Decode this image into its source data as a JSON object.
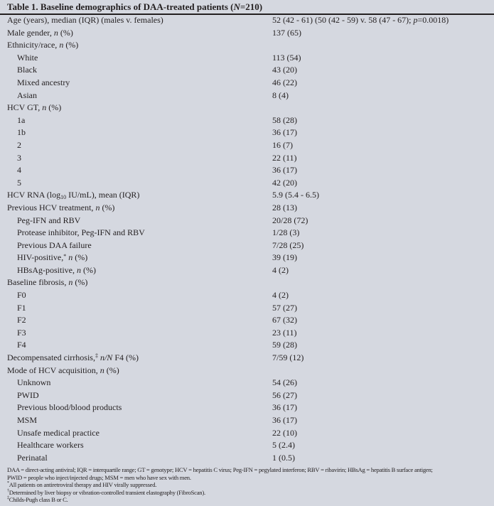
{
  "title": {
    "prefix": "Table 1. Baseline demographics of DAA-treated patients (",
    "italic": "N",
    "suffix": "=210)"
  },
  "rows": [
    {
      "indent": 0,
      "label": [
        [
          "t",
          "Age (years), median (IQR) (males v. females)"
        ]
      ],
      "value": [
        [
          "t",
          "52 (42 - 61) (50 (42 - 59) v. 58 (47 - 67); "
        ],
        [
          "i",
          "p"
        ],
        [
          "t",
          "=0.0018)"
        ]
      ]
    },
    {
      "indent": 0,
      "label": [
        [
          "t",
          "Male gender, "
        ],
        [
          "i",
          "n"
        ],
        [
          "t",
          " (%)"
        ]
      ],
      "value": [
        [
          "t",
          "137 (65)"
        ]
      ]
    },
    {
      "indent": 0,
      "label": [
        [
          "t",
          "Ethnicity/race, "
        ],
        [
          "i",
          "n"
        ],
        [
          "t",
          " (%)"
        ]
      ],
      "value": []
    },
    {
      "indent": 1,
      "label": [
        [
          "t",
          "White"
        ]
      ],
      "value": [
        [
          "t",
          "113 (54)"
        ]
      ]
    },
    {
      "indent": 1,
      "label": [
        [
          "t",
          "Black"
        ]
      ],
      "value": [
        [
          "t",
          "43 (20)"
        ]
      ]
    },
    {
      "indent": 1,
      "label": [
        [
          "t",
          "Mixed ancestry"
        ]
      ],
      "value": [
        [
          "t",
          "46 (22)"
        ]
      ]
    },
    {
      "indent": 1,
      "label": [
        [
          "t",
          "Asian"
        ]
      ],
      "value": [
        [
          "t",
          "8 (4)"
        ]
      ]
    },
    {
      "indent": 0,
      "label": [
        [
          "t",
          "HCV GT, "
        ],
        [
          "i",
          "n"
        ],
        [
          "t",
          " (%)"
        ]
      ],
      "value": []
    },
    {
      "indent": 1,
      "label": [
        [
          "t",
          "1a"
        ]
      ],
      "value": [
        [
          "t",
          "58 (28)"
        ]
      ]
    },
    {
      "indent": 1,
      "label": [
        [
          "t",
          "1b"
        ]
      ],
      "value": [
        [
          "t",
          "36 (17)"
        ]
      ]
    },
    {
      "indent": 1,
      "label": [
        [
          "t",
          "2"
        ]
      ],
      "value": [
        [
          "t",
          "16 (7)"
        ]
      ]
    },
    {
      "indent": 1,
      "label": [
        [
          "t",
          "3"
        ]
      ],
      "value": [
        [
          "t",
          "22 (11)"
        ]
      ]
    },
    {
      "indent": 1,
      "label": [
        [
          "t",
          "4"
        ]
      ],
      "value": [
        [
          "t",
          "36 (17)"
        ]
      ]
    },
    {
      "indent": 1,
      "label": [
        [
          "t",
          "5"
        ]
      ],
      "value": [
        [
          "t",
          "42 (20)"
        ]
      ]
    },
    {
      "indent": 0,
      "label": [
        [
          "t",
          "HCV RNA (log"
        ],
        [
          "sub",
          "10"
        ],
        [
          "t",
          " IU/mL), mean (IQR)"
        ]
      ],
      "value": [
        [
          "t",
          "5.9 (5.4 - 6.5)"
        ]
      ]
    },
    {
      "indent": 0,
      "label": [
        [
          "t",
          "Previous HCV treatment, "
        ],
        [
          "i",
          "n"
        ],
        [
          "t",
          " (%)"
        ]
      ],
      "value": [
        [
          "t",
          "28 (13)"
        ]
      ]
    },
    {
      "indent": 1,
      "label": [
        [
          "t",
          "Peg-IFN and RBV"
        ]
      ],
      "value": [
        [
          "t",
          "20/28 (72)"
        ]
      ]
    },
    {
      "indent": 1,
      "label": [
        [
          "t",
          "Protease inhibitor, Peg-IFN and RBV"
        ]
      ],
      "value": [
        [
          "t",
          "1/28 (3)"
        ]
      ]
    },
    {
      "indent": 1,
      "label": [
        [
          "t",
          "Previous DAA failure"
        ]
      ],
      "value": [
        [
          "t",
          "7/28 (25)"
        ]
      ]
    },
    {
      "indent": 1,
      "label": [
        [
          "t",
          "HIV-positive,"
        ],
        [
          "sup",
          "*"
        ],
        [
          "t",
          " "
        ],
        [
          "i",
          "n"
        ],
        [
          "t",
          " (%)"
        ]
      ],
      "value": [
        [
          "t",
          "39 (19)"
        ]
      ]
    },
    {
      "indent": 1,
      "label": [
        [
          "t",
          "HBsAg-positive, "
        ],
        [
          "i",
          "n"
        ],
        [
          "t",
          " (%)"
        ]
      ],
      "value": [
        [
          "t",
          "4 (2)"
        ]
      ]
    },
    {
      "indent": 0,
      "label": [
        [
          "t",
          "Baseline fibrosis, "
        ],
        [
          "i",
          "n"
        ],
        [
          "t",
          " (%)"
        ]
      ],
      "value": []
    },
    {
      "indent": 1,
      "label": [
        [
          "t",
          "F0"
        ]
      ],
      "value": [
        [
          "t",
          "4 (2)"
        ]
      ]
    },
    {
      "indent": 1,
      "label": [
        [
          "t",
          "F1"
        ]
      ],
      "value": [
        [
          "t",
          "57 (27)"
        ]
      ]
    },
    {
      "indent": 1,
      "label": [
        [
          "t",
          "F2"
        ]
      ],
      "value": [
        [
          "t",
          "67 (32)"
        ]
      ]
    },
    {
      "indent": 1,
      "label": [
        [
          "t",
          "F3"
        ]
      ],
      "value": [
        [
          "t",
          "23 (11)"
        ]
      ]
    },
    {
      "indent": 1,
      "label": [
        [
          "t",
          "F4"
        ]
      ],
      "value": [
        [
          "t",
          "59 (28)"
        ]
      ]
    },
    {
      "indent": 0,
      "label": [
        [
          "t",
          "Decompensated cirrhosis,"
        ],
        [
          "sup",
          "‡"
        ],
        [
          "t",
          " "
        ],
        [
          "i",
          "n/N"
        ],
        [
          "t",
          " F4 (%)"
        ]
      ],
      "value": [
        [
          "t",
          "7/59 (12)"
        ]
      ]
    },
    {
      "indent": 0,
      "label": [
        [
          "t",
          "Mode of HCV acquisition, "
        ],
        [
          "i",
          "n"
        ],
        [
          "t",
          " (%)"
        ]
      ],
      "value": []
    },
    {
      "indent": 1,
      "label": [
        [
          "t",
          "Unknown"
        ]
      ],
      "value": [
        [
          "t",
          "54 (26)"
        ]
      ]
    },
    {
      "indent": 1,
      "label": [
        [
          "t",
          "PWID"
        ]
      ],
      "value": [
        [
          "t",
          "56 (27)"
        ]
      ]
    },
    {
      "indent": 1,
      "label": [
        [
          "t",
          "Previous blood/blood products"
        ]
      ],
      "value": [
        [
          "t",
          "36 (17)"
        ]
      ]
    },
    {
      "indent": 1,
      "label": [
        [
          "t",
          "MSM"
        ]
      ],
      "value": [
        [
          "t",
          "36 (17)"
        ]
      ]
    },
    {
      "indent": 1,
      "label": [
        [
          "t",
          "Unsafe medical practice"
        ]
      ],
      "value": [
        [
          "t",
          "22 (10)"
        ]
      ]
    },
    {
      "indent": 1,
      "label": [
        [
          "t",
          "Healthcare workers"
        ]
      ],
      "value": [
        [
          "t",
          "5 (2.4)"
        ]
      ]
    },
    {
      "indent": 1,
      "label": [
        [
          "t",
          "Perinatal"
        ]
      ],
      "value": [
        [
          "t",
          "1 (0.5)"
        ]
      ]
    }
  ],
  "footnotes": {
    "abbrev1": "DAA = direct-acting antiviral; IQR = interquartile range; GT = genotype; HCV = hepatitis C virus; Peg-IFN = pegylated interferon; RBV = ribavirin; HBsAg = hepatitis B surface antigen;",
    "abbrev2": "PWID = people who inject/injected drugs; MSM = men who have sex with men.",
    "note1_mark": "*",
    "note1": "All patients on antiretroviral therapy and HIV virally suppressed.",
    "note2_mark": "†",
    "note2": "Determined by liver biopsy or vibration-controlled transient elastography (FibroScan).",
    "note3_mark": "‡",
    "note3": "Childs-Pugh class B or C."
  }
}
